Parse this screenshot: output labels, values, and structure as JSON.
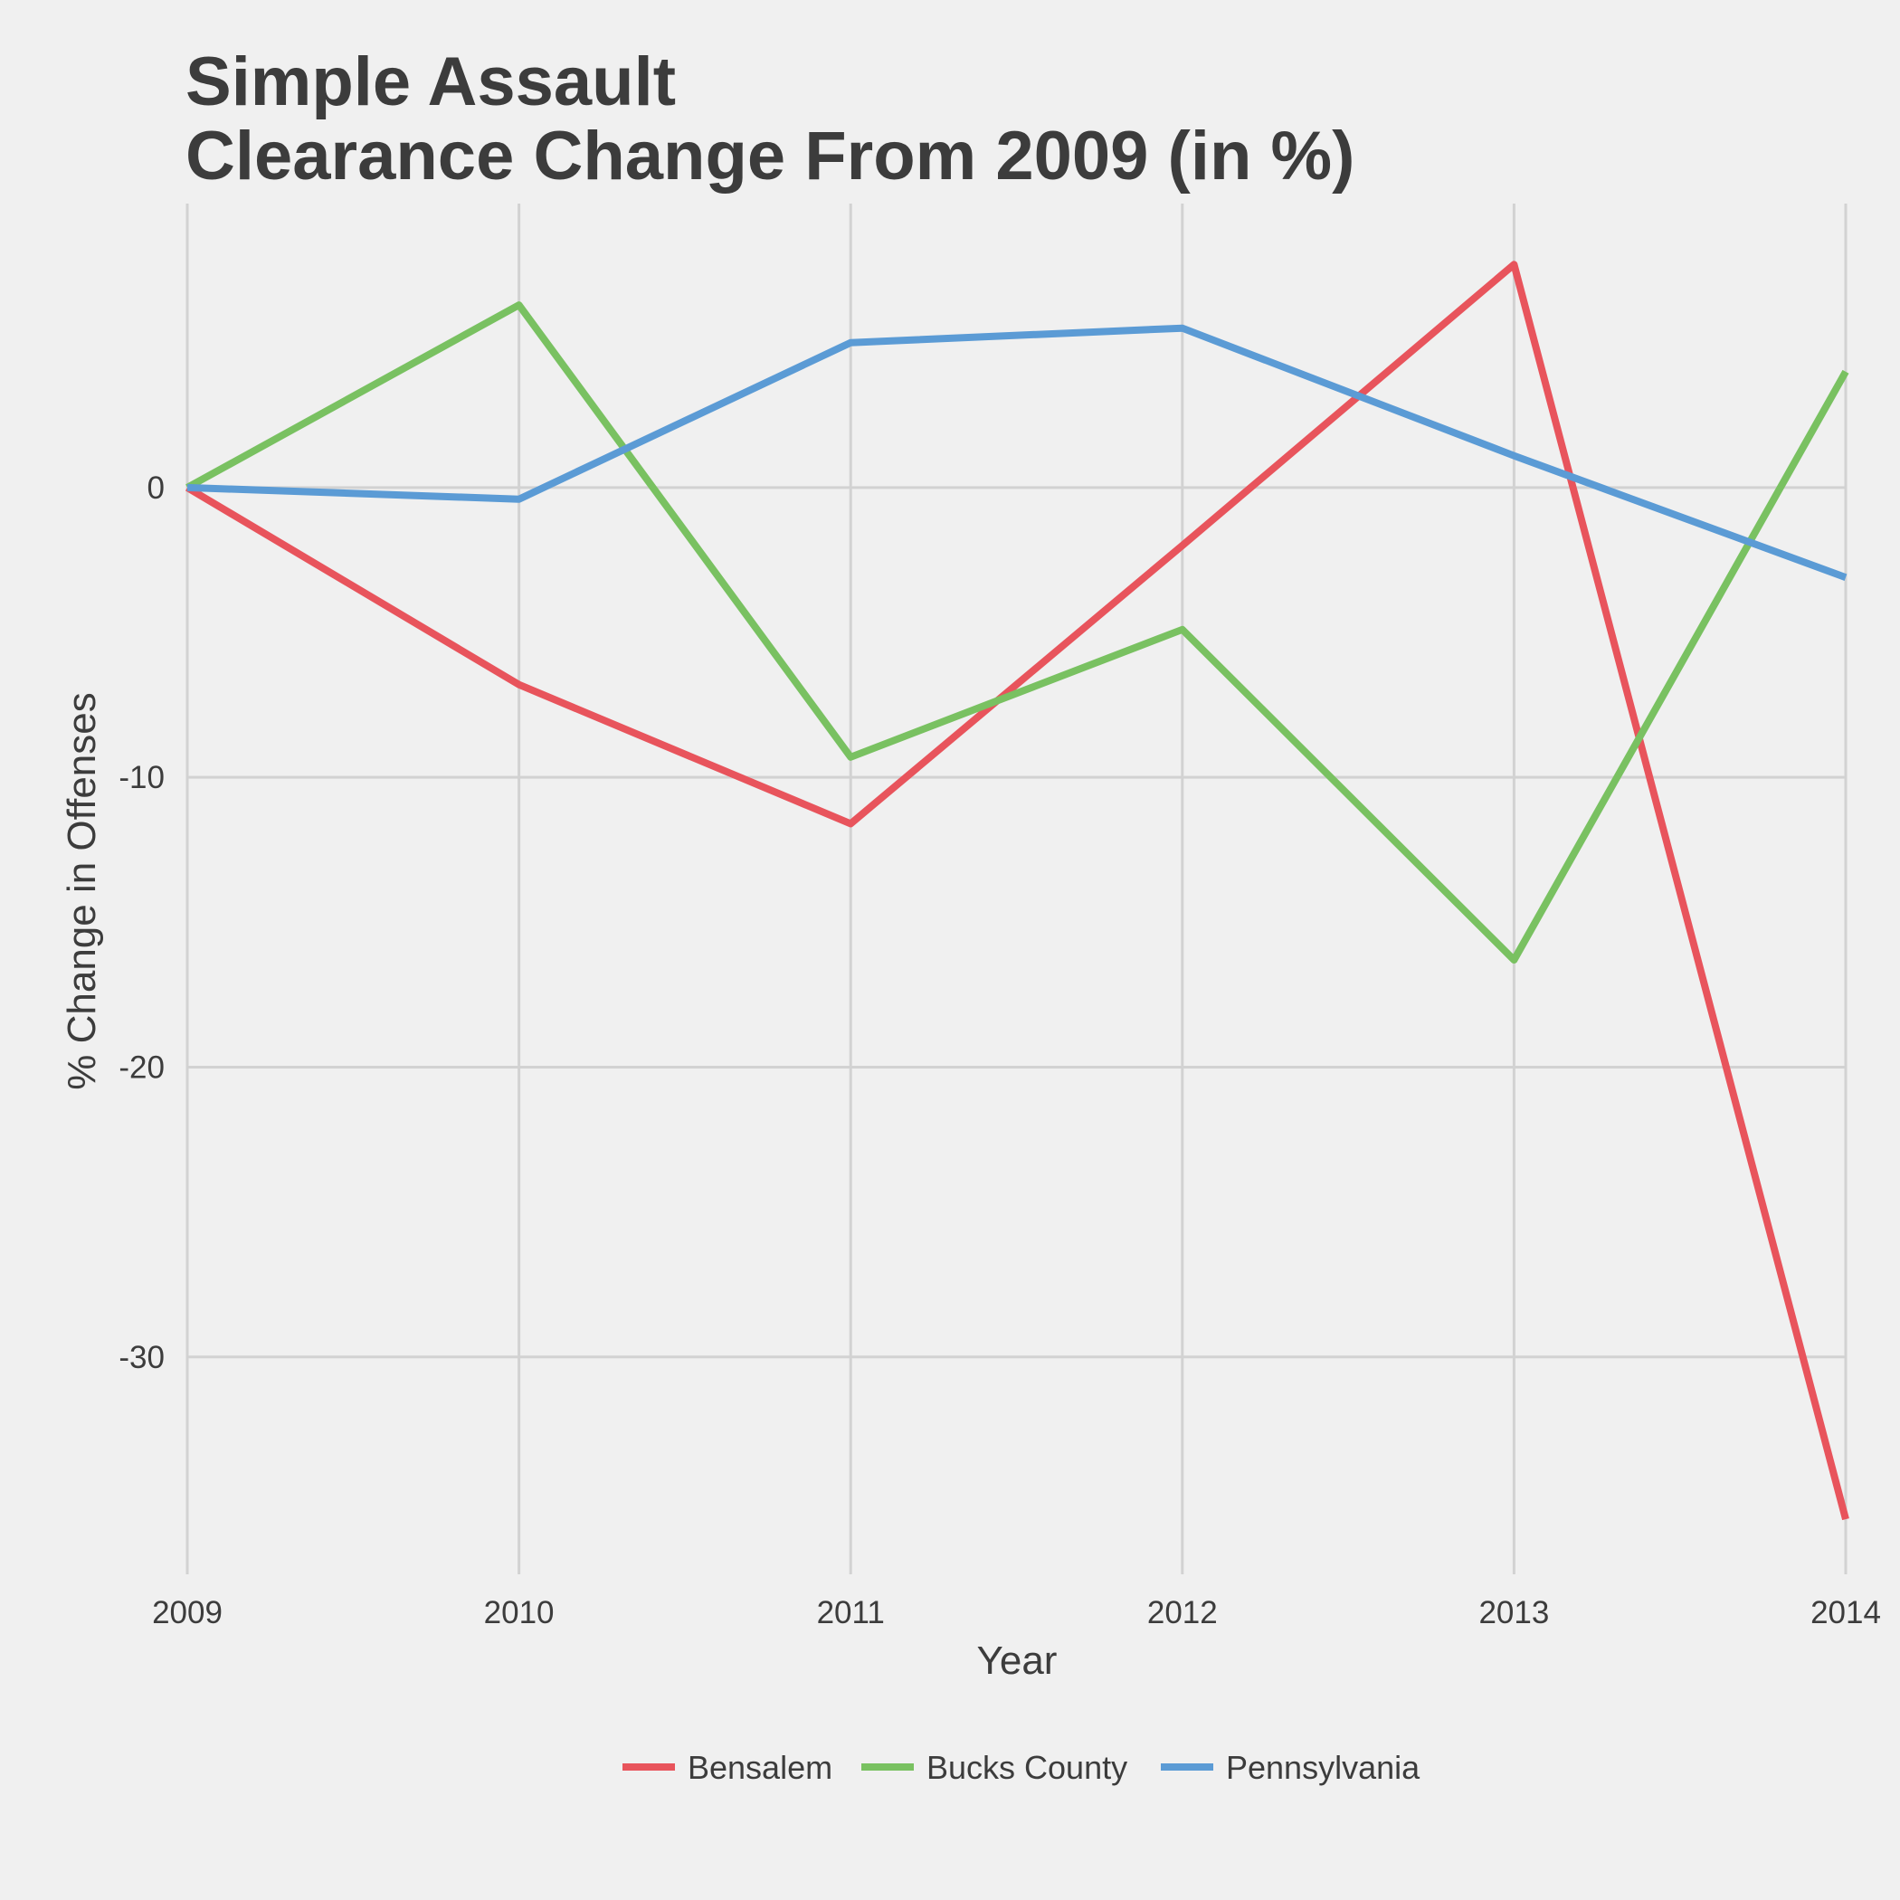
{
  "chart_data": {
    "type": "line",
    "title": [
      "Simple Assault",
      "Clearance Change From 2009 (in %)"
    ],
    "xlabel": "Year",
    "ylabel": "% Change in Offenses",
    "x": [
      2009,
      2010,
      2011,
      2012,
      2013,
      2014
    ],
    "x_tick_labels": [
      "2009",
      "2010",
      "2011",
      "2012",
      "2013",
      "2014"
    ],
    "y_ticks": [
      0,
      -10,
      -20,
      -30
    ],
    "y_tick_labels": [
      "0",
      "-10",
      "-20",
      "-30"
    ],
    "ylim": [
      -37.5,
      9.8
    ],
    "grid": true,
    "legend_position": "bottom",
    "series": [
      {
        "name": "Bensalem",
        "color": "#e8545c",
        "values": [
          0,
          -6.8,
          -11.6,
          -2.0,
          7.7,
          -35.6
        ]
      },
      {
        "name": "Bucks County",
        "color": "#79c161",
        "values": [
          0,
          6.3,
          -9.3,
          -4.9,
          -16.3,
          4.0
        ]
      },
      {
        "name": "Pennsylvania",
        "color": "#5b9bd5",
        "values": [
          0,
          -0.4,
          5.0,
          5.5,
          1.1,
          -3.1
        ]
      }
    ]
  }
}
